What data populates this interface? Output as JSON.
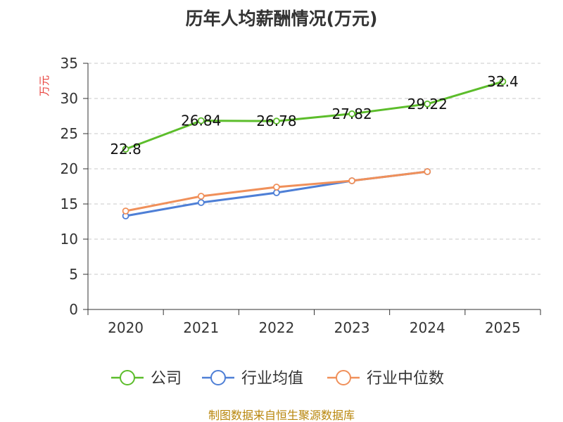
{
  "chart_data": {
    "type": "line",
    "title": "历年人均薪酬情况(万元)",
    "ylabel": "万元",
    "xlabel": "",
    "categories": [
      "2020",
      "2021",
      "2022",
      "2023",
      "2024",
      "2025"
    ],
    "ylim": [
      0,
      35
    ],
    "yticks": [
      0,
      5,
      10,
      15,
      20,
      25,
      30,
      35
    ],
    "grid": true,
    "legend_position": "bottom",
    "series": [
      {
        "name": "公司",
        "color": "#5cbd2b",
        "values": [
          22.8,
          26.84,
          26.78,
          27.82,
          29.22,
          32.4
        ],
        "labels": [
          "22.8",
          "26.84",
          "26.78",
          "27.82",
          "29.22",
          "32.4"
        ]
      },
      {
        "name": "行业均值",
        "color": "#4e7fd6",
        "values": [
          13.3,
          15.2,
          16.6,
          18.3,
          19.6,
          null
        ]
      },
      {
        "name": "行业中位数",
        "color": "#f0905a",
        "values": [
          14.0,
          16.1,
          17.4,
          18.3,
          19.6,
          null
        ]
      }
    ]
  },
  "source_text": "制图数据来自恒生聚源数据库"
}
